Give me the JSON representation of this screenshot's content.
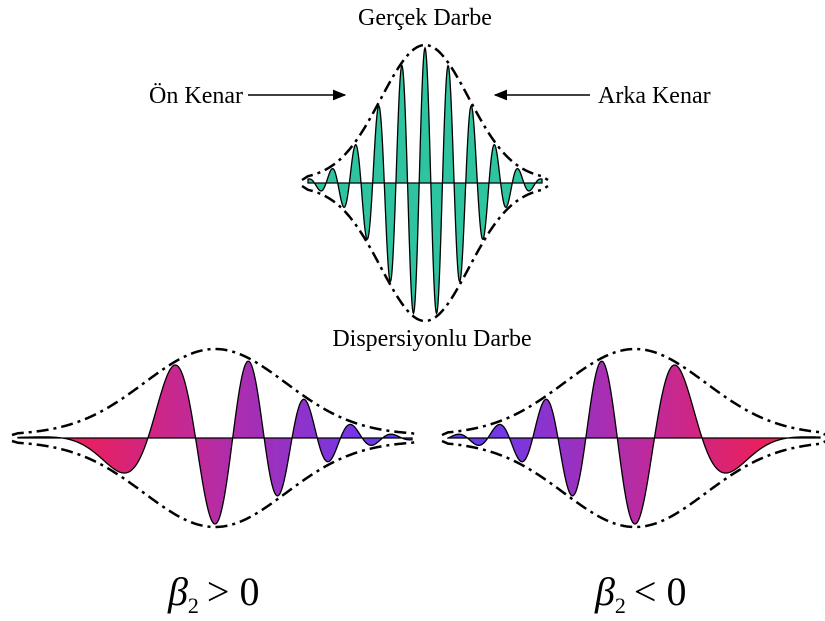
{
  "title": "Gerçek Darbe",
  "leading_edge": "Ön Kenar",
  "trailing_edge": "Arka Kenar",
  "dispersed_title": "Dispersiyonlu Darbe",
  "cases": [
    {
      "symbol": "β",
      "subscript": "2",
      "relation": "> 0"
    },
    {
      "symbol": "β",
      "subscript": "2",
      "relation": "< 0"
    }
  ]
}
